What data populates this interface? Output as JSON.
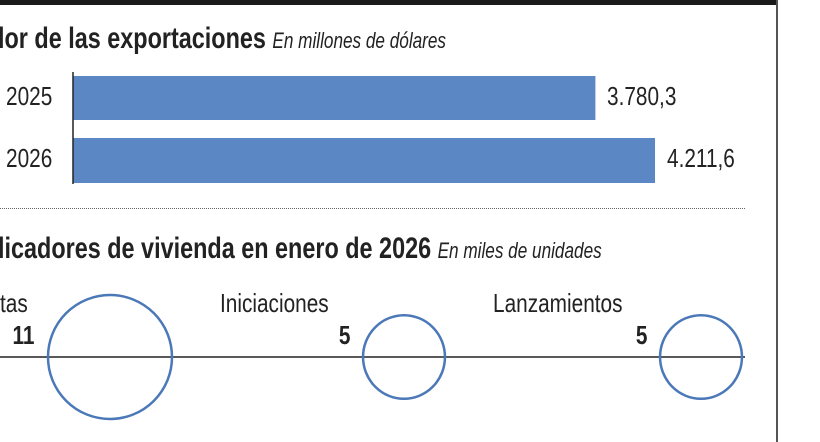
{
  "exports": {
    "title": "lor de las exportaciones",
    "subtitle": "En millones de dólares"
  },
  "housing": {
    "title": "licadores de vivienda en enero de 2026",
    "subtitle": "En miles de unidades"
  },
  "chart_data": [
    {
      "type": "bar",
      "orientation": "horizontal",
      "title": "lor de las exportaciones",
      "subtitle": "En millones de dólares",
      "categories": [
        "2025",
        "2026"
      ],
      "values": [
        3780.3,
        4211.6
      ],
      "value_labels": [
        "3.780,3",
        "4.211,6"
      ],
      "color": "#5b87c5"
    },
    {
      "type": "bubble",
      "title": "licadores de vivienda en enero de 2026",
      "subtitle": "En miles de unidades",
      "categories": [
        "tas",
        "Iniciaciones",
        "Lanzamientos"
      ],
      "values": [
        11,
        5,
        5
      ],
      "value_labels": [
        "11",
        "5",
        "5"
      ],
      "color": "#4a78b8"
    }
  ]
}
